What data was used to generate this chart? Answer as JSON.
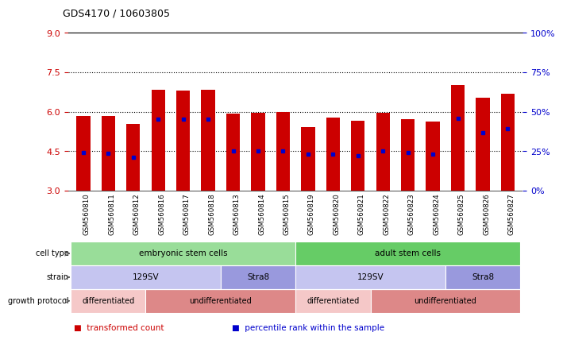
{
  "title": "GDS4170 / 10603805",
  "samples": [
    "GSM560810",
    "GSM560811",
    "GSM560812",
    "GSM560816",
    "GSM560817",
    "GSM560818",
    "GSM560813",
    "GSM560814",
    "GSM560815",
    "GSM560819",
    "GSM560820",
    "GSM560821",
    "GSM560822",
    "GSM560823",
    "GSM560824",
    "GSM560825",
    "GSM560826",
    "GSM560827"
  ],
  "bar_tops": [
    5.85,
    5.85,
    5.55,
    6.85,
    6.8,
    6.85,
    5.92,
    5.95,
    5.98,
    5.42,
    5.78,
    5.65,
    5.95,
    5.72,
    5.62,
    7.02,
    6.52,
    6.7
  ],
  "bar_bottom": 3.0,
  "blue_dots": [
    4.45,
    4.42,
    4.28,
    5.72,
    5.72,
    5.72,
    4.5,
    4.5,
    4.5,
    4.38,
    4.4,
    4.32,
    4.52,
    4.44,
    4.38,
    5.75,
    5.2,
    5.35
  ],
  "ylim_left": [
    3,
    9
  ],
  "ylim_right": [
    0,
    100
  ],
  "yticks_left": [
    3,
    4.5,
    6,
    7.5,
    9
  ],
  "yticks_right": [
    0,
    25,
    50,
    75,
    100
  ],
  "grid_lines": [
    4.5,
    6.0,
    7.5
  ],
  "bar_color": "#cc0000",
  "dot_color": "#0000cc",
  "left_tick_color": "#cc0000",
  "right_tick_color": "#0000cc",
  "cell_type_groups": [
    {
      "label": "embryonic stem cells",
      "start": 0,
      "end": 9,
      "color": "#99dd99"
    },
    {
      "label": "adult stem cells",
      "start": 9,
      "end": 18,
      "color": "#66cc66"
    }
  ],
  "strain_groups": [
    {
      "label": "129SV",
      "start": 0,
      "end": 6,
      "color": "#c5c5f0"
    },
    {
      "label": "Stra8",
      "start": 6,
      "end": 9,
      "color": "#9999dd"
    },
    {
      "label": "129SV",
      "start": 9,
      "end": 15,
      "color": "#c5c5f0"
    },
    {
      "label": "Stra8",
      "start": 15,
      "end": 18,
      "color": "#9999dd"
    }
  ],
  "growth_groups": [
    {
      "label": "differentiated",
      "start": 0,
      "end": 3,
      "color": "#f5c8c8"
    },
    {
      "label": "undifferentiated",
      "start": 3,
      "end": 9,
      "color": "#dd8888"
    },
    {
      "label": "differentiated",
      "start": 9,
      "end": 12,
      "color": "#f5c8c8"
    },
    {
      "label": "undifferentiated",
      "start": 12,
      "end": 18,
      "color": "#dd8888"
    }
  ],
  "legend_items": [
    {
      "label": "transformed count",
      "color": "#cc0000",
      "marker": "s"
    },
    {
      "label": "percentile rank within the sample",
      "color": "#0000cc",
      "marker": "s"
    }
  ],
  "row_labels": [
    "cell type",
    "strain",
    "growth protocol"
  ],
  "bg_color": "#ffffff",
  "plot_bg": "#ffffff",
  "xtick_bg": "#e0e0e0"
}
